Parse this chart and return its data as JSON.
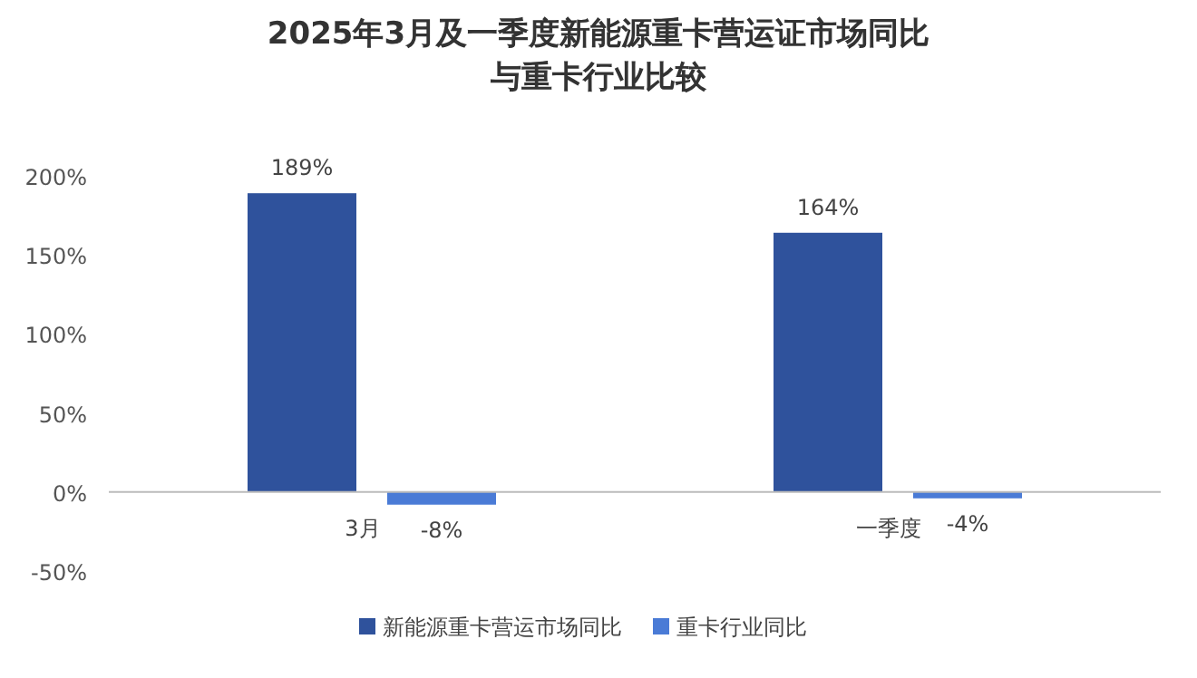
{
  "chart_data": {
    "type": "bar",
    "title": "2025年3月及一季度新能源重卡营运证市场同比",
    "subtitle": "与重卡行业比较",
    "categories": [
      "3月",
      "一季度"
    ],
    "series": [
      {
        "name": "新能源重卡营运市场同比",
        "color": "#2f529c",
        "values": [
          189,
          164
        ],
        "value_labels": [
          "189%",
          "164%"
        ]
      },
      {
        "name": "重卡行业同比",
        "color": "#4a7bd6",
        "values": [
          -8,
          -4
        ],
        "value_labels": [
          "-8%",
          "-4%"
        ]
      }
    ],
    "ylim": [
      -50,
      200
    ],
    "yticks": [
      {
        "value": -50,
        "label": "-50%"
      },
      {
        "value": 0,
        "label": "0%"
      },
      {
        "value": 50,
        "label": "50%"
      },
      {
        "value": 100,
        "label": "100%"
      },
      {
        "value": 150,
        "label": "150%"
      },
      {
        "value": 200,
        "label": "200%"
      }
    ],
    "grid": false,
    "legend": "bottom"
  }
}
